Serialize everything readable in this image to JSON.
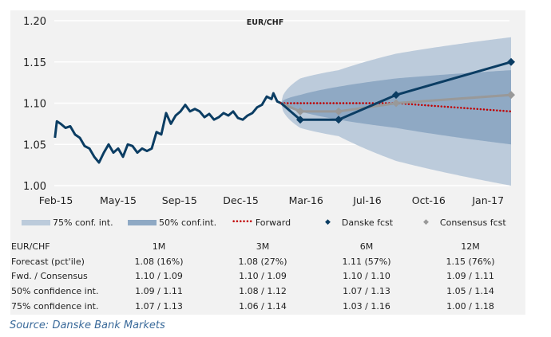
{
  "chart_data": {
    "type": "line",
    "title": "EUR/CHF",
    "xlabel": "",
    "ylabel": "",
    "x_unit": "months since start of Feb-15",
    "ylim": [
      1.0,
      1.2
    ],
    "yticks": [
      1.0,
      1.05,
      1.1,
      1.15,
      1.2
    ],
    "xlim": [
      0,
      24
    ],
    "xticks": [
      {
        "label": "Feb-15",
        "x": 0.25
      },
      {
        "label": "May-15",
        "x": 3.5
      },
      {
        "label": "Sep-15",
        "x": 6.7
      },
      {
        "label": "Dec-15",
        "x": 9.9
      },
      {
        "label": "Mar-16",
        "x": 13.3
      },
      {
        "label": "Jul-16",
        "x": 16.5
      },
      {
        "label": "Oct-16",
        "x": 19.7
      },
      {
        "label": "Jan-17",
        "x": 22.8
      }
    ],
    "grid": true,
    "history": {
      "name": "EUR/CHF spot",
      "x": [
        0.2,
        0.3,
        0.5,
        0.75,
        1.0,
        1.25,
        1.5,
        1.75,
        2.0,
        2.25,
        2.5,
        2.75,
        3.0,
        3.25,
        3.5,
        3.75,
        4.0,
        4.25,
        4.5,
        4.75,
        5.0,
        5.25,
        5.5,
        5.75,
        6.0,
        6.25,
        6.5,
        6.75,
        7.0,
        7.25,
        7.5,
        7.75,
        8.0,
        8.25,
        8.5,
        8.75,
        9.0,
        9.25,
        9.5,
        9.75,
        10.0,
        10.25,
        10.5,
        10.75,
        11.0,
        11.25,
        11.5,
        11.6,
        11.8,
        12.0
      ],
      "y": [
        1.058,
        1.078,
        1.075,
        1.07,
        1.072,
        1.062,
        1.058,
        1.048,
        1.045,
        1.035,
        1.028,
        1.04,
        1.05,
        1.04,
        1.045,
        1.035,
        1.05,
        1.048,
        1.04,
        1.045,
        1.042,
        1.045,
        1.065,
        1.062,
        1.088,
        1.075,
        1.085,
        1.09,
        1.098,
        1.09,
        1.093,
        1.09,
        1.083,
        1.087,
        1.08,
        1.083,
        1.088,
        1.085,
        1.09,
        1.082,
        1.08,
        1.085,
        1.088,
        1.095,
        1.098,
        1.108,
        1.105,
        1.112,
        1.102,
        1.1
      ]
    },
    "forecast_x": [
      12,
      13,
      15,
      18,
      24
    ],
    "series": [
      {
        "name": "Danske fcst",
        "values": [
          1.1,
          1.08,
          1.08,
          1.11,
          1.15
        ],
        "color": "#0b3d63"
      },
      {
        "name": "Consensus fcst",
        "values": [
          1.1,
          1.09,
          1.09,
          1.1,
          1.11
        ],
        "color": "#999999"
      },
      {
        "name": "Forward",
        "values": [
          1.1,
          1.1,
          1.1,
          1.1,
          1.09
        ],
        "color": "#c00000"
      }
    ],
    "bands": [
      {
        "name": "75% conf. int.",
        "low": [
          1.1,
          1.07,
          1.06,
          1.03,
          1.0
        ],
        "high": [
          1.1,
          1.13,
          1.14,
          1.16,
          1.18
        ],
        "color": "#bccbdb"
      },
      {
        "name": "50% conf.int.",
        "low": [
          1.1,
          1.09,
          1.08,
          1.07,
          1.05
        ],
        "high": [
          1.1,
          1.11,
          1.12,
          1.13,
          1.14
        ],
        "color": "#8fa9c4"
      }
    ],
    "legend_position": "bottom"
  },
  "legend": [
    "75% conf. int.",
    "50% conf.int.",
    "Forward",
    "Danske fcst",
    "Consensus fcst"
  ],
  "table": {
    "headers": [
      "EUR/CHF",
      "1M",
      "3M",
      "6M",
      "12M"
    ],
    "rows": [
      [
        "Forecast (pct'ile)",
        "1.08 (16%)",
        "1.08 (27%)",
        "1.11 (57%)",
        "1.15 (76%)"
      ],
      [
        "Fwd. / Consensus",
        "1.10 / 1.09",
        "1.10 / 1.09",
        "1.10 / 1.10",
        "1.09 / 1.11"
      ],
      [
        "50% confidence int.",
        "1.09 / 1.11",
        "1.08 / 1.12",
        "1.07 / 1.13",
        "1.05 / 1.14"
      ],
      [
        "75% confidence int.",
        "1.07 / 1.13",
        "1.06 / 1.14",
        "1.03 / 1.16",
        "1.00 / 1.18"
      ]
    ]
  },
  "source": "Source: Danske Bank Markets"
}
